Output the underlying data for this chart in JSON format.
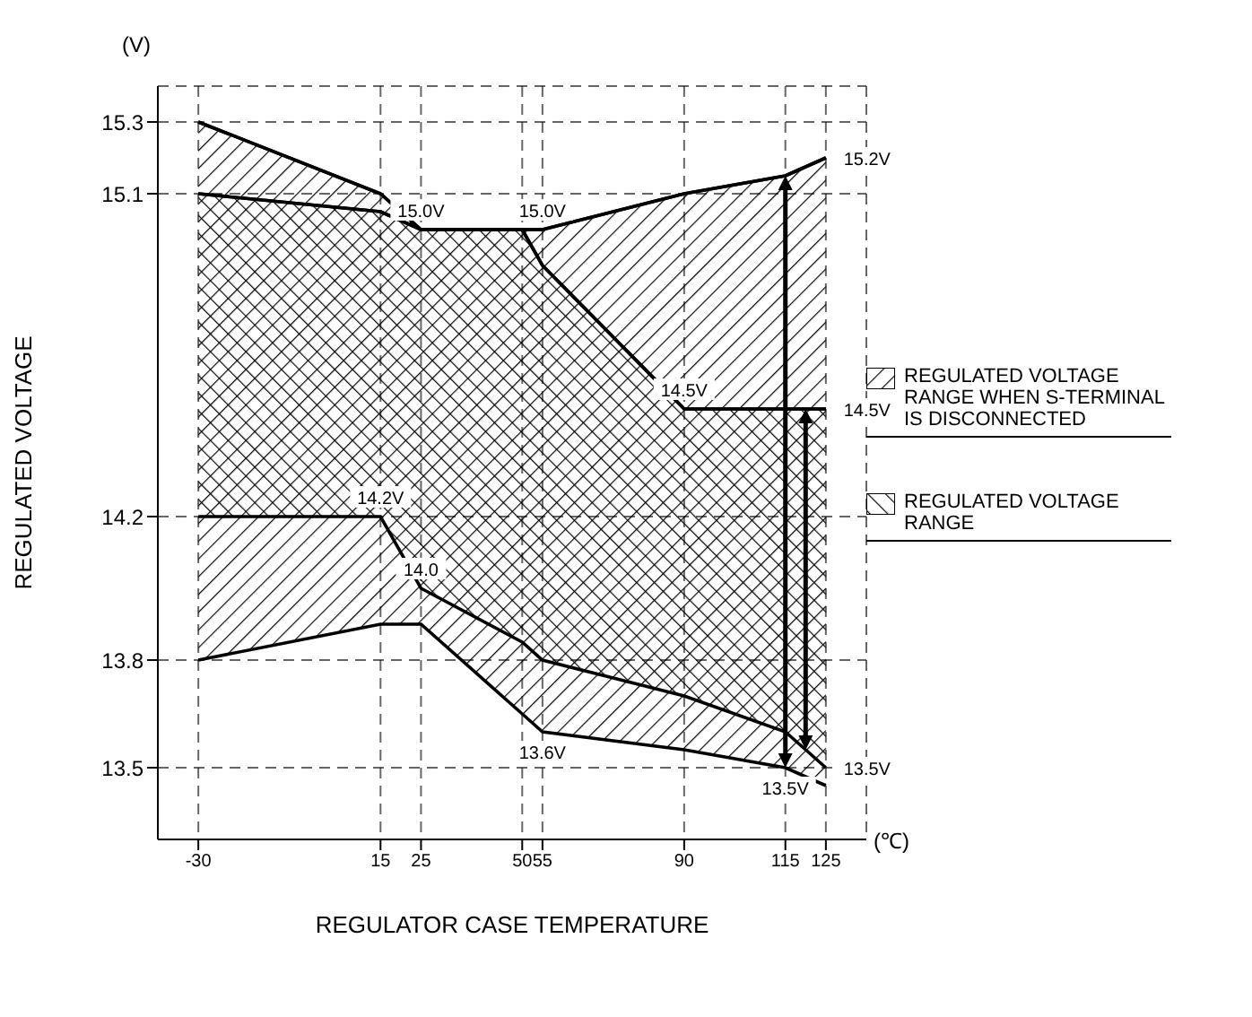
{
  "chart_data": {
    "type": "line",
    "xlabel": "REGULATOR CASE TEMPERATURE",
    "ylabel": "REGULATED VOLTAGE",
    "x": [
      -30,
      15,
      25,
      50,
      55,
      90,
      115,
      125
    ],
    "series": [
      {
        "name": "REGULATED VOLTAGE RANGE WHEN S-TERMINAL IS DISCONNECTED",
        "color": "#000000",
        "values": [
          15.3,
          15.1,
          15.0,
          15.0,
          15.0,
          15.1,
          15.15,
          15.2
        ],
        "upper": [
          15.3,
          15.1,
          15.0,
          15.0,
          15.0,
          15.1,
          15.15,
          15.2
        ],
        "lower": [
          13.8,
          13.9,
          13.9,
          13.65,
          13.6,
          13.55,
          13.5,
          13.45
        ]
      },
      {
        "name": "REGULATED VOLTAGE RANGE",
        "color": "#000000",
        "values": [
          15.1,
          15.05,
          15.0,
          15.0,
          14.9,
          14.5,
          14.5,
          14.5
        ],
        "upper": [
          15.1,
          15.05,
          15.0,
          15.0,
          14.9,
          14.5,
          14.5,
          14.5
        ],
        "lower": [
          14.2,
          14.2,
          14.0,
          13.85,
          13.8,
          13.7,
          13.6,
          13.5
        ]
      }
    ],
    "xlim": [
      -40,
      135
    ],
    "xticks": [
      -30,
      15,
      25,
      50,
      55,
      90,
      115,
      125
    ],
    "ylim": [
      13.3,
      15.4
    ],
    "yticks": [
      13.5,
      13.8,
      14.2,
      15.1,
      15.3
    ],
    "grid": true,
    "legend": "right",
    "annotations": [
      "(V)",
      "(℃)",
      {
        "text": "15.0V",
        "x": 25,
        "y": 15.0
      },
      {
        "text": "15.0V",
        "x": 55,
        "y": 15.0
      },
      {
        "text": "14.2V",
        "x": 15,
        "y": 14.2
      },
      {
        "text": "14.0",
        "x": 25,
        "y": 14.0
      },
      {
        "text": "13.6V",
        "x": 55,
        "y": 13.6
      },
      {
        "text": "14.5V",
        "x": 90,
        "y": 14.5
      },
      {
        "text": "13.5V",
        "x": 115,
        "y": 13.5
      },
      {
        "text": "15.2V",
        "x": 125,
        "y": 15.2
      },
      {
        "text": "14.5V",
        "x": 125,
        "y": 14.5
      },
      {
        "text": "13.5V",
        "x": 125,
        "y": 13.5
      }
    ]
  }
}
